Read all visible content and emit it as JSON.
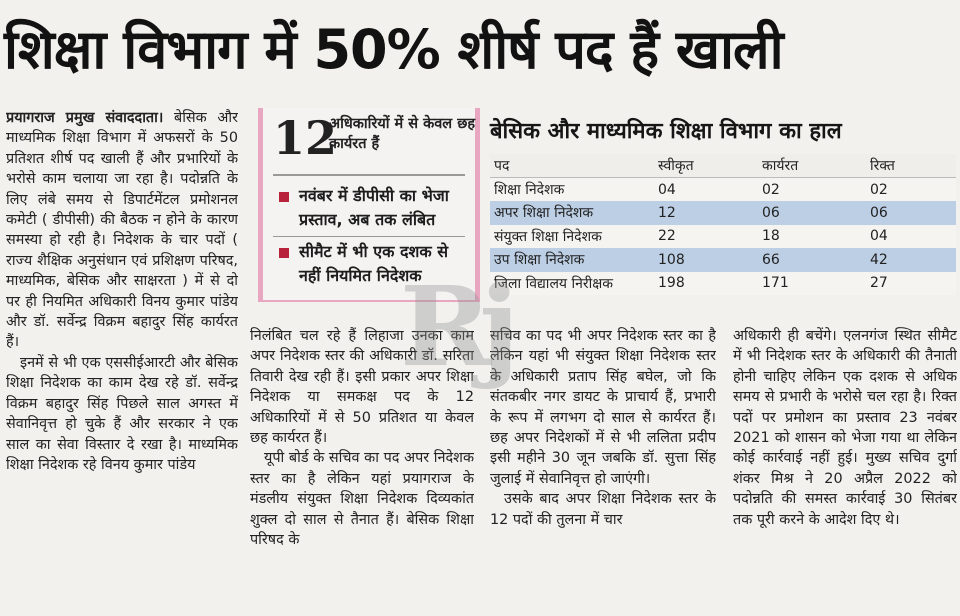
{
  "headline": "शिक्षा विभाग में 50% शीर्ष पद हैं खाली",
  "watermark": "Rj",
  "sidebox": {
    "number": "12",
    "subhead": "अधिकारियों में से केवल छह कार्यरत हैं",
    "bullets": [
      "नवंबर में डीपीसी का भेजा प्रस्ताव, अब तक लंबित",
      "सीमैट में भी एक दशक से नहीं नियमित निदेशक"
    ]
  },
  "table": {
    "title": "बेसिक और माध्यमिक शिक्षा विभाग का हाल",
    "headers": [
      "पद",
      "स्वीकृत",
      "कार्यरत",
      "रिक्त"
    ],
    "rows": [
      [
        "शिक्षा निदेशक",
        "04",
        "02",
        "02"
      ],
      [
        "अपर शिक्षा निदेशक",
        "12",
        "06",
        "06"
      ],
      [
        "संयुक्त शिक्षा निदेशक",
        "22",
        "18",
        "04"
      ],
      [
        "उप शिक्षा निदेशक",
        "108",
        "66",
        "42"
      ],
      [
        "जिला विद्यालय निरीक्षक",
        "198",
        "171",
        "27"
      ]
    ]
  },
  "article": {
    "col1_p1_dateline": "प्रयागराज प्रमुख संवाददाता।",
    "col1_p1": " बेसिक और माध्यमिक शिक्षा विभाग में अफसरों के 50 प्रतिशत शीर्ष पद खाली हैं और प्रभारियों के भरोसे काम चलाया जा रहा है। पदोन्नति के लिए लंबे समय से डिपार्टमेंटल प्रमोशनल कमेटी ( डीपीसी) की बैठक न होने के कारण समस्या हो रही है। निदेशक के चार पदों ( राज्य शैक्षिक अनुसंधान एवं प्रशिक्षण परिषद, माध्यमिक, बेसिक और साक्षरता ) में से दो पर ही नियमित अधिकारी विनय कुमार पांडेय और डॉ. सर्वेन्द्र विक्रम बहादुर सिंह कार्यरत हैं।",
    "col1_p2": "इनमें से भी एक एससीईआरटी और बेसिक शिक्षा निदेशक का काम देख रहे डॉ. सर्वेन्द्र विक्रम बहादुर सिंह पिछले साल अगस्त में सेवानिवृत्त हो चुके हैं और सरकार ने एक साल का सेवा विस्तार दे रखा है। माध्यमिक शिक्षा निदेशक रहे विनय कुमार पांडेय",
    "col2_p1": "निलंबित चल रहे हैं लिहाजा उनका काम अपर निदेशक स्तर की अधिकारी डॉ. सरिता तिवारी देख रही हैं। इसी प्रकार अपर शिक्षा निदेशक या समकक्ष पद के 12 अधिकारियों में से 50 प्रतिशत या केवल छह कार्यरत हैं।",
    "col2_p2": "यूपी बोर्ड के सचिव का पद अपर निदेशक स्तर का है लेकिन यहां प्रयागराज के मंडलीय संयुक्त शिक्षा निदेशक दिव्यकांत शुक्ल दो साल से तैनात हैं। बेसिक शिक्षा परिषद के",
    "col3_p1": "सचिव का पद भी अपर निदेशक स्तर का है लेकिन यहां भी संयुक्त शिक्षा निदेशक स्तर के अधिकारी प्रताप सिंह बघेल, जो कि संतकबीर नगर डायट के प्राचार्य हैं, प्रभारी के रूप में लगभग दो साल से कार्यरत हैं। छह अपर निदेशकों में से भी ललिता प्रदीप इसी महीने 30 जून जबकि डॉ. सुत्ता सिंह जुलाई में सेवानिवृत्त हो जाएंगी।",
    "col3_p2": "उसके बाद अपर शिक्षा निदेशक स्तर के 12 पदों की तुलना में चार",
    "col4_p1": "अधिकारी ही बचेंगे। एलनगंज स्थित सीमैट में भी निदेशक स्तर के अधिकारी की तैनाती होनी चाहिए लेकिन एक दशक से अधिक समय से प्रभारी के भरोसे चल रहा है। रिक्त पदों पर प्रमोशन का प्रस्ताव 23 नवंबर 2021 को शासन को भेजा गया था लेकिन कोई कार्रवाई नहीं हुई। मुख्य सचिव दुर्गा शंकर मिश्र ने 20 अप्रैल 2022 को पदोन्नति की समस्त कार्रवाई 30 सितंबर तक पूरी करने के आदेश दिए थे।"
  }
}
